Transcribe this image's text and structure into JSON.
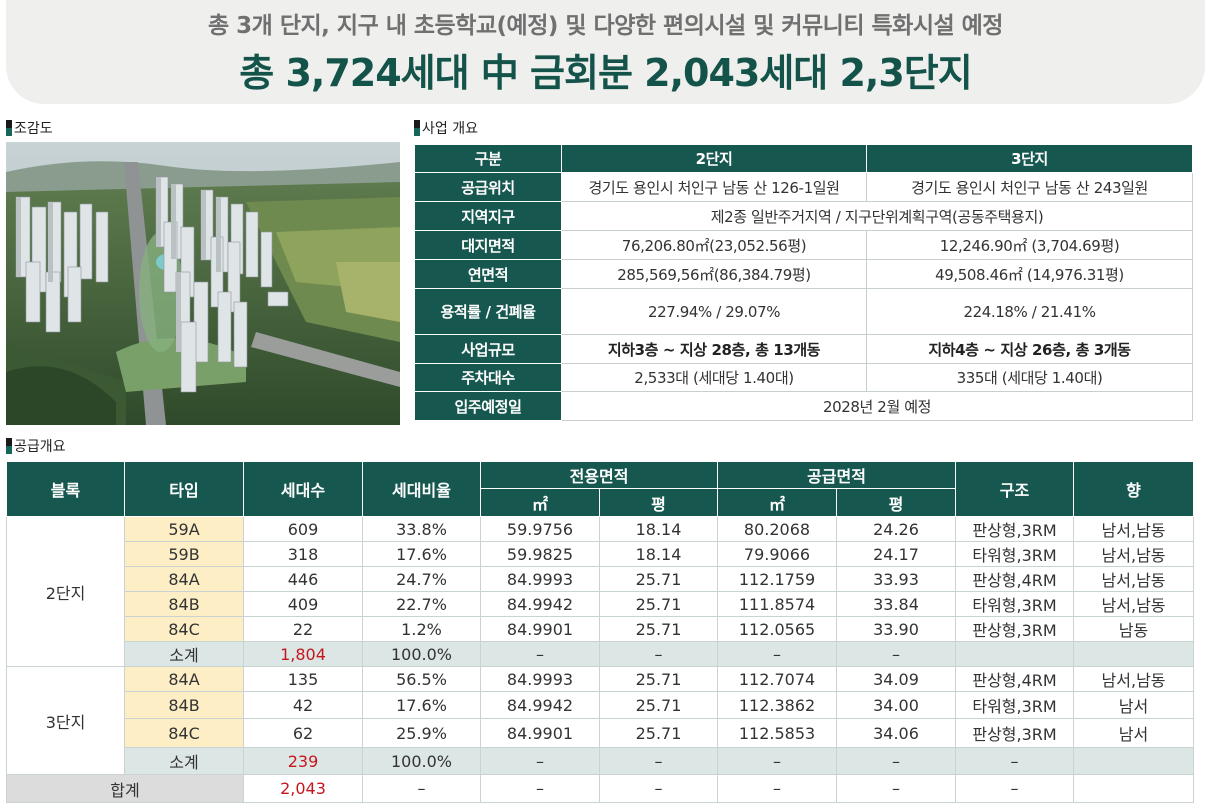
{
  "banner": {
    "subtitle": "총 3개 단지, 지구 내 초등학교(예정) 및 다양한 편의시설 및 커뮤니티 특화시설 예정",
    "title": "총 3,724세대 中 금회분 2,043세대 2,3단지"
  },
  "sections": {
    "aerial": "조감도",
    "overview": "사업 개요",
    "supply": "공급개요"
  },
  "overview": {
    "headers": [
      "구분",
      "2단지",
      "3단지"
    ],
    "location": {
      "label": "공급위치",
      "c2": "경기도 용인시 처인구 남동 산 126-1일원",
      "c3": "경기도 용인시 처인구 남동 산 243일원"
    },
    "zone": {
      "label": "지역지구",
      "value": "제2종 일반주거지역 / 지구단위계획구역(공동주택용지)"
    },
    "land": {
      "label": "대지면적",
      "c2": "76,206.80㎡(23,052.56평)",
      "c3": "12,246.90㎡ (3,704.69평)"
    },
    "floor": {
      "label": "연면적",
      "c2": "285,569,56㎡(86,384.79평)",
      "c3": "49,508.46㎡  (14,976.31평)"
    },
    "ratio": {
      "label": "용적률 / 건폐율",
      "c2": "227.94% / 29.07%",
      "c3": "224.18% / 21.41%"
    },
    "scale": {
      "label": "사업규모",
      "c2": "지하3층 ~ 지상 28층, 총 13개동",
      "c3": "지하4층 ~ 지상 26층, 총 3개동"
    },
    "parking": {
      "label": "주차대수",
      "c2": "2,533대 (세대당 1.40대)",
      "c3": "335대 (세대당 1.40대)"
    },
    "movein": {
      "label": "입주예정일",
      "value": "2028년 2월 예정"
    }
  },
  "supply": {
    "headers": {
      "block": "블록",
      "type": "타입",
      "units": "세대수",
      "ratio": "세대비율",
      "exclusive": "전용면적",
      "supplyArea": "공급면적",
      "structure": "구조",
      "direction": "향",
      "sqm": "㎡",
      "pyeong": "평"
    },
    "block2": {
      "name": "2단지",
      "rows": [
        [
          "59A",
          "609",
          "33.8%",
          "59.9756",
          "18.14",
          "80.2068",
          "24.26",
          "판상형,3RM",
          "남서,남동"
        ],
        [
          "59B",
          "318",
          "17.6%",
          "59.9825",
          "18.14",
          "79.9066",
          "24.17",
          "타워형,3RM",
          "남서,남동"
        ],
        [
          "84A",
          "446",
          "24.7%",
          "84.9993",
          "25.71",
          "112.1759",
          "33.93",
          "판상형,4RM",
          "남서,남동"
        ],
        [
          "84B",
          "409",
          "22.7%",
          "84.9942",
          "25.71",
          "111.8574",
          "33.84",
          "타워형,3RM",
          "남서,남동"
        ],
        [
          "84C",
          "22",
          "1.2%",
          "84.9901",
          "25.71",
          "112.0565",
          "33.90",
          "판상형,3RM",
          "남동"
        ]
      ],
      "subtotal": [
        "소계",
        "1,804",
        "100.0%",
        "–",
        "–",
        "–",
        "–",
        "",
        ""
      ]
    },
    "block3": {
      "name": "3단지",
      "rows": [
        [
          "84A",
          "135",
          "56.5%",
          "84.9993",
          "25.71",
          "112.7074",
          "34.09",
          "판상형,4RM",
          "남서,남동"
        ],
        [
          "84B",
          "42",
          "17.6%",
          "84.9942",
          "25.71",
          "112.3862",
          "34.00",
          "타워형,3RM",
          "남서"
        ],
        [
          "84C",
          "62",
          "25.9%",
          "84.9901",
          "25.71",
          "112.5853",
          "34.06",
          "판상형,3RM",
          "남서"
        ]
      ],
      "subtotal": [
        "소계",
        "239",
        "100.0%",
        "–",
        "–",
        "–",
        "–",
        "–",
        ""
      ]
    },
    "total": [
      "합계",
      "2,043",
      "–",
      "–",
      "–",
      "–",
      "–",
      "–",
      ""
    ]
  }
}
